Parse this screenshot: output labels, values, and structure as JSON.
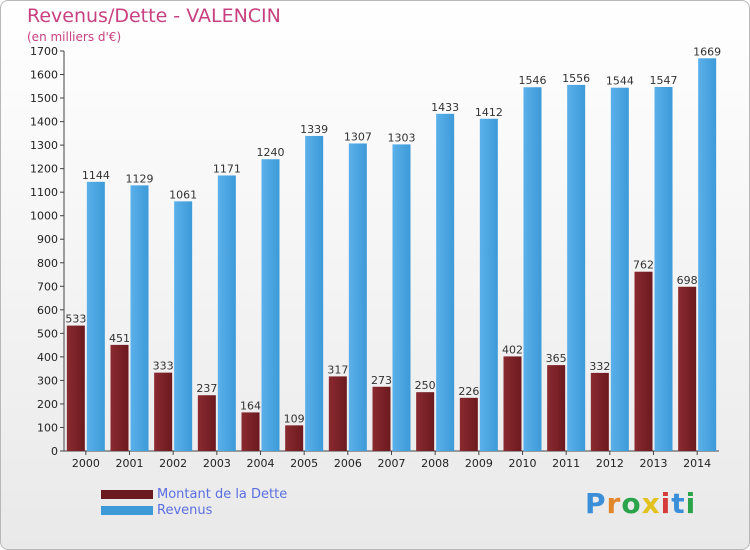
{
  "title": "Revenus/Dette - VALENCIN",
  "subtitle": "(en milliers d'€)",
  "colors": {
    "series1": "#6b1a1f",
    "series2": "#3d9ad8",
    "title": "#c8407f",
    "legend_text": "#5b6ee0"
  },
  "logo": {
    "text": "Proxiti"
  },
  "chart_data": {
    "type": "bar",
    "categories": [
      "2000",
      "2001",
      "2002",
      "2003",
      "2004",
      "2005",
      "2006",
      "2007",
      "2008",
      "2009",
      "2010",
      "2011",
      "2012",
      "2013",
      "2014"
    ],
    "series": [
      {
        "name": "Montant de la Dette",
        "values": [
          533,
          451,
          333,
          237,
          164,
          109,
          317,
          273,
          250,
          226,
          402,
          365,
          332,
          762,
          698
        ]
      },
      {
        "name": "Revenus",
        "values": [
          1144,
          1129,
          1061,
          1171,
          1240,
          1339,
          1307,
          1303,
          1433,
          1412,
          1546,
          1556,
          1544,
          1547,
          1669
        ]
      }
    ],
    "ylim": [
      0,
      1700
    ],
    "yticks": [
      0,
      100,
      200,
      300,
      400,
      500,
      600,
      700,
      800,
      900,
      1000,
      1100,
      1200,
      1300,
      1400,
      1500,
      1600,
      1700
    ],
    "grid": false,
    "legend_position": "bottom-left"
  }
}
